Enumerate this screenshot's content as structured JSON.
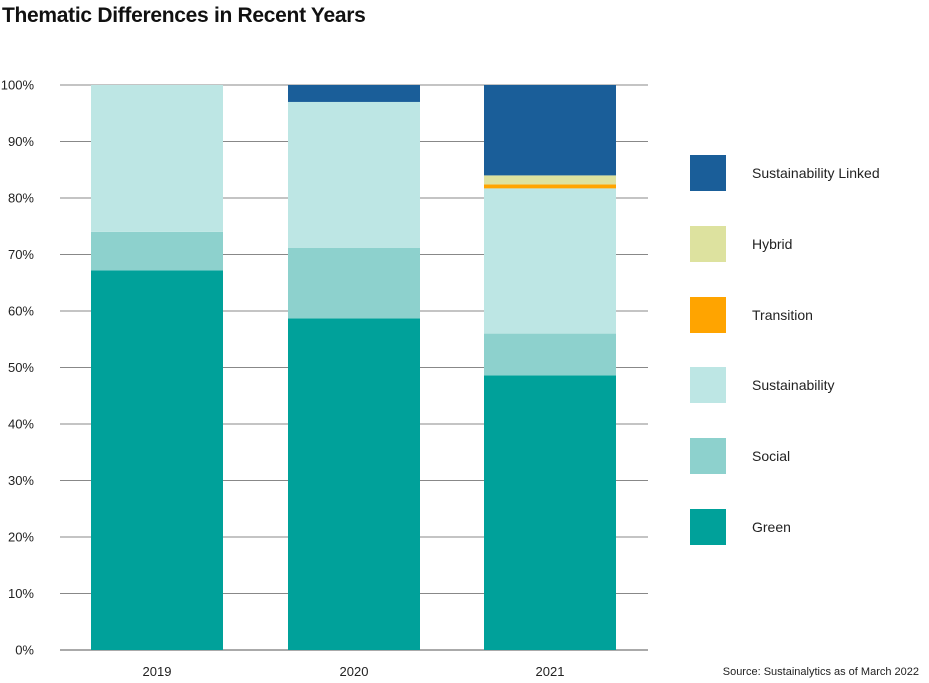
{
  "title": "Thematic Differences in Recent Years",
  "source": "Source: Sustainalytics as of March 2022",
  "colors": {
    "Green": "#00a19a",
    "Social": "#8dd1cd",
    "Sustainability": "#bde6e4",
    "Transition": "#ffa400",
    "Hybrid": "#dde29f",
    "Sustainability Linked": "#1a5e99"
  },
  "chart_data": {
    "type": "bar",
    "stacked": true,
    "categories": [
      "2019",
      "2020",
      "2021"
    ],
    "series": [
      {
        "name": "Green",
        "values": [
          67.2,
          58.7,
          48.6
        ]
      },
      {
        "name": "Social",
        "values": [
          6.8,
          12.5,
          7.4
        ]
      },
      {
        "name": "Sustainability",
        "values": [
          26.0,
          25.8,
          25.7
        ]
      },
      {
        "name": "Transition",
        "values": [
          0,
          0,
          0.7
        ]
      },
      {
        "name": "Hybrid",
        "values": [
          0,
          0,
          1.6
        ]
      },
      {
        "name": "Sustainability Linked",
        "values": [
          0,
          3.0,
          16.0
        ]
      }
    ],
    "ylim": [
      0,
      100
    ],
    "yticks": [
      "0%",
      "10%",
      "20%",
      "30%",
      "40%",
      "50%",
      "60%",
      "70%",
      "80%",
      "90%",
      "100%"
    ],
    "grid": true,
    "legend": {
      "placement": "right",
      "order": [
        "Sustainability Linked",
        "Hybrid",
        "Transition",
        "Sustainability",
        "Social",
        "Green"
      ]
    }
  }
}
